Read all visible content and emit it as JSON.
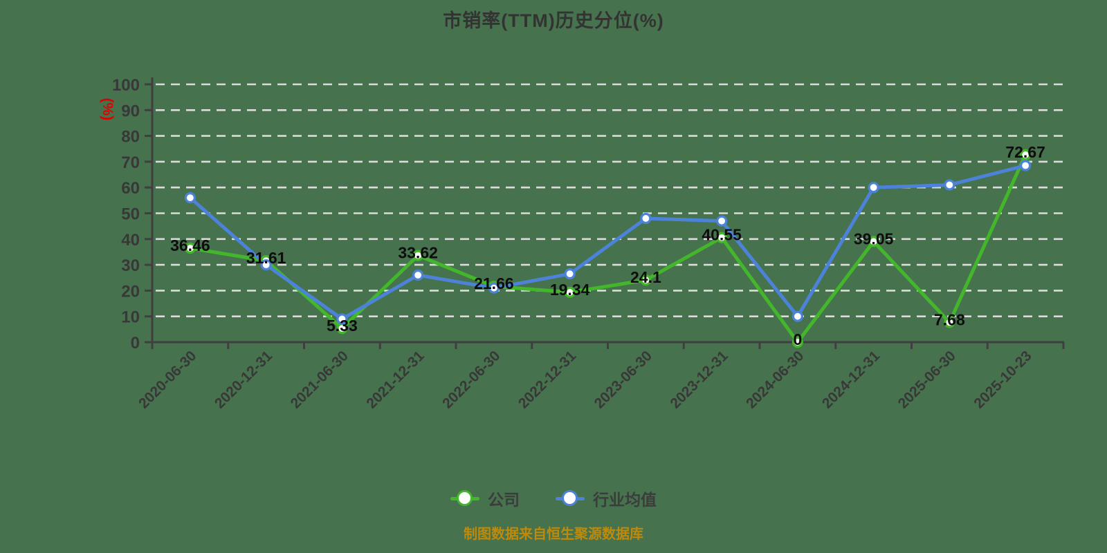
{
  "title": "市销率(TTM)历史分位(%)",
  "y_axis_unit_label": "(%)",
  "footer": "制图数据来自恒生聚源数据库",
  "colors": {
    "background": "#47724e",
    "grid": "#dcdcdc",
    "axis": "#3f3f3f",
    "tick_text": "#383838",
    "data_label": "#0d0d0d",
    "title_text": "#333333",
    "y_unit_label": "#e00000",
    "footer_text": "#bd8a0b",
    "company_green": "#44b62c",
    "industry_blue": "#4c83d8"
  },
  "chart_data": {
    "type": "line",
    "title": "市销率(TTM)历史分位(%)",
    "xlabel": "",
    "ylabel": "(%)",
    "ylim": [
      0,
      100
    ],
    "ytick_step": 10,
    "grid": true,
    "grid_style": "dashed",
    "legend_position": "bottom",
    "categories": [
      "2020-06-30",
      "2020-12-31",
      "2021-06-30",
      "2021-12-31",
      "2022-06-30",
      "2022-12-31",
      "2023-06-30",
      "2023-12-31",
      "2024-06-30",
      "2024-12-31",
      "2025-06-30",
      "2025-10-23"
    ],
    "series": [
      {
        "name": "公司",
        "color": "#44b62c",
        "values": [
          36.46,
          31.61,
          5.33,
          33.62,
          21.66,
          19.34,
          24.1,
          40.55,
          0,
          39.05,
          7.68,
          72.67
        ],
        "labels_shown": true
      },
      {
        "name": "行业均值",
        "color": "#4c83d8",
        "values": [
          56,
          30,
          9,
          26,
          21,
          26.5,
          48,
          47,
          10,
          60,
          61,
          68.5
        ],
        "labels_shown": false
      }
    ]
  }
}
